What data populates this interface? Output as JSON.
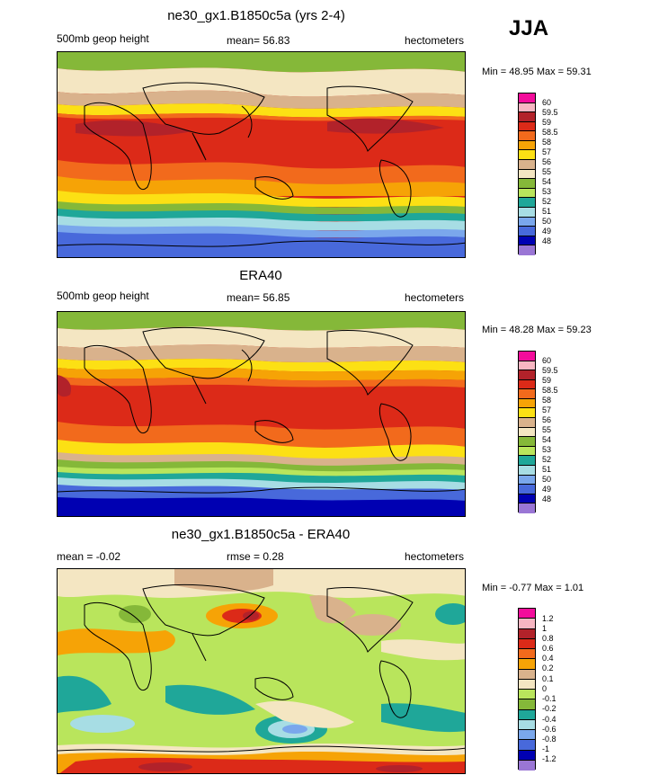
{
  "season": "JJA",
  "panels": [
    {
      "title": "ne30_gx1.B1850c5a (yrs 2-4)",
      "field": "500mb geop height",
      "stat": "mean=  56.83",
      "units": "hectometers",
      "minmax": "Min =  48.95 Max =  59.31",
      "colorbar": {
        "labels": [
          "60",
          "59.5",
          "59",
          "58.5",
          "58",
          "57",
          "56",
          "55",
          "54",
          "53",
          "52",
          "51",
          "50",
          "49",
          "48"
        ],
        "colors": [
          "#f30c9b",
          "#f7b6c2",
          "#b2222a",
          "#dc2a18",
          "#f26a1c",
          "#f6a306",
          "#fce014",
          "#d9b28c",
          "#f4e6c2",
          "#85b839",
          "#b9e55c",
          "#1fa799",
          "#a7dde4",
          "#7aa7ec",
          "#4869db",
          "#0000b2",
          "#9a76d5"
        ]
      },
      "regions": {
        "north_polar": "light green",
        "midlatitude_north": "tan",
        "subtropics": "red-orange",
        "southern_band": "blue"
      }
    },
    {
      "title": "ERA40",
      "field": "500mb geop height",
      "stat": "mean=  56.85",
      "units": "hectometers",
      "minmax": "Min =  48.28 Max =  59.23",
      "colorbar": {
        "labels": [
          "60",
          "59.5",
          "59",
          "58.5",
          "58",
          "57",
          "56",
          "55",
          "54",
          "53",
          "52",
          "51",
          "50",
          "49",
          "48"
        ],
        "colors": [
          "#f30c9b",
          "#f7b6c2",
          "#b2222a",
          "#dc2a18",
          "#f26a1c",
          "#f6a306",
          "#fce014",
          "#d9b28c",
          "#f4e6c2",
          "#85b839",
          "#b9e55c",
          "#1fa799",
          "#a7dde4",
          "#7aa7ec",
          "#4869db",
          "#0000b2",
          "#9a76d5"
        ]
      }
    },
    {
      "title": "ne30_gx1.B1850c5a - ERA40",
      "stat_left": "mean =  -0.02",
      "stat": "rmse =   0.28",
      "units": "hectometers",
      "minmax": "Min =  -0.77 Max =   1.01",
      "colorbar": {
        "labels": [
          "1.2",
          "1",
          "0.8",
          "0.6",
          "0.4",
          "0.2",
          "0.1",
          "0",
          "-0.1",
          "-0.2",
          "-0.4",
          "-0.6",
          "-0.8",
          "-1",
          "-1.2"
        ],
        "colors": [
          "#f30c9b",
          "#f7b6c2",
          "#b2222a",
          "#dc2a18",
          "#f26a1c",
          "#f6a306",
          "#d9b28c",
          "#f4e6c2",
          "#b9e55c",
          "#85b839",
          "#1fa799",
          "#a7dde4",
          "#7aa7ec",
          "#4869db",
          "#0000b2",
          "#9a76d5"
        ]
      }
    }
  ]
}
